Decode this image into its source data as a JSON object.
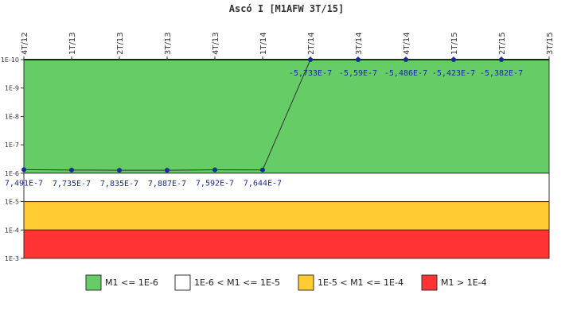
{
  "chart_data": {
    "type": "line",
    "title": "Ascó I [M1AFW 3T/15]",
    "xlabel": "",
    "ylabel": "",
    "y_scale": "log",
    "y_inverted": true,
    "ylim": [
      "1E-10",
      "1E-3"
    ],
    "categories": [
      "4T/12",
      "1T/13",
      "2T/13",
      "3T/13",
      "4T/13",
      "1T/14",
      "2T/14",
      "3T/14",
      "4T/14",
      "1T/15",
      "2T/15",
      "3T/15"
    ],
    "y_tick_labels": [
      "1E-10",
      "1E-9",
      "1E-8",
      "1E-7",
      "1E-6",
      "1E-5",
      "1E-4",
      "1E-3"
    ],
    "series": [
      {
        "values": [
          7.491e-07,
          7.735e-07,
          7.835e-07,
          7.887e-07,
          7.592e-07,
          7.644e-07,
          -5.733e-07,
          -5.59e-07,
          -5.486e-07,
          -5.423e-07,
          -5.382e-07,
          null
        ],
        "labels": [
          "7,491E-7",
          "7,735E-7",
          "7,835E-7",
          "7,887E-7",
          "7,592E-7",
          "7,644E-7",
          "-5,733E-7",
          "-5,59E-7",
          "-5,486E-7",
          "-5,423E-7",
          "-5,382E-7",
          ""
        ],
        "color": "#1a2a9c"
      }
    ],
    "bands": [
      {
        "label": "M1 <= 1E-6",
        "from": "1E-10",
        "to": "1E-6",
        "color": "#66cc66"
      },
      {
        "label": "1E-6 < M1 <= 1E-5",
        "from": "1E-6",
        "to": "1E-5",
        "color": "#ffffff"
      },
      {
        "label": "1E-5 < M1 <= 1E-4",
        "from": "1E-5",
        "to": "1E-4",
        "color": "#ffcc33"
      },
      {
        "label": "M1 > 1E-4",
        "from": "1E-4",
        "to": "1E-3",
        "color": "#ff3333"
      }
    ],
    "grid": false,
    "legend_position": "bottom"
  }
}
